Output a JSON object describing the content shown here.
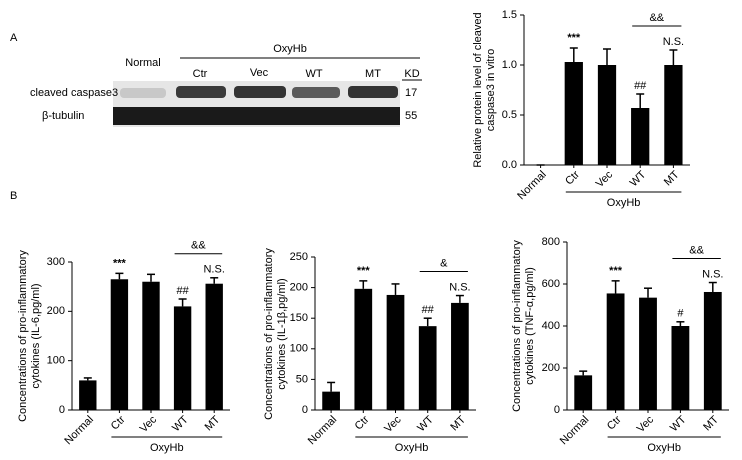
{
  "panel_labels": [
    "A",
    "B"
  ],
  "blot": {
    "group_label": "OxyHb",
    "lanes": [
      "Normal",
      "Ctr",
      "Vec",
      "WT",
      "MT"
    ],
    "kd_header": "KD",
    "rows": [
      {
        "label": "cleaved caspase3",
        "kd": "17"
      },
      {
        "label": "β-tubulin",
        "kd": "55"
      }
    ]
  },
  "chart_data": [
    {
      "type": "bar",
      "ylabel": "Relative protein level of cleaved caspase3 in vitro",
      "categories": [
        "Normal",
        "Ctr",
        "Vec",
        "WT",
        "MT"
      ],
      "values": [
        0,
        1.03,
        1.0,
        0.57,
        1.0
      ],
      "errors": [
        0,
        0.14,
        0.16,
        0.14,
        0.15
      ],
      "color": "#000000",
      "ylim": [
        0,
        1.5
      ],
      "yticks": [
        {
          "value": 0,
          "label": "0.0"
        },
        0.5,
        {
          "value": 1,
          "label": "1.0"
        },
        1.5
      ],
      "annotations": [
        {
          "text": "***",
          "category": "Ctr"
        },
        {
          "text": "##",
          "category": "WT"
        },
        {
          "text": "N.S.",
          "category": "MT"
        }
      ],
      "brackets": [
        {
          "text": "&&",
          "from": "WT",
          "to": "MT"
        }
      ],
      "group": {
        "label": "OxyHb",
        "from": "Ctr",
        "to": "MT"
      }
    },
    {
      "type": "bar",
      "ylabel": "Concentrations of pro-inflammatory cytokines (IL-6,pg/ml)",
      "categories": [
        "Normal",
        "Ctr",
        "Vec",
        "WT",
        "MT"
      ],
      "values": [
        60,
        265,
        260,
        210,
        256
      ],
      "errors": [
        5,
        12,
        15,
        15,
        12
      ],
      "color": "#000000",
      "ylim": [
        0,
        300
      ],
      "yticks": [
        0,
        100,
        200,
        300
      ],
      "annotations": [
        {
          "text": "***",
          "category": "Ctr"
        },
        {
          "text": "##",
          "category": "WT"
        },
        {
          "text": "N.S.",
          "category": "MT"
        }
      ],
      "brackets": [
        {
          "text": "&&",
          "from": "WT",
          "to": "MT"
        }
      ],
      "group": {
        "label": "OxyHb",
        "from": "Ctr",
        "to": "MT"
      }
    },
    {
      "type": "bar",
      "ylabel": "Concentrations of pro-inflammatory cytokines (IL-1β,pg/ml)",
      "categories": [
        "Normal",
        "Ctr",
        "Vec",
        "WT",
        "MT"
      ],
      "values": [
        30,
        198,
        188,
        137,
        175
      ],
      "errors": [
        15,
        13,
        18,
        13,
        12
      ],
      "color": "#000000",
      "ylim": [
        0,
        250
      ],
      "yticks": [
        0,
        50,
        100,
        150,
        200,
        250
      ],
      "annotations": [
        {
          "text": "***",
          "category": "Ctr"
        },
        {
          "text": "##",
          "category": "WT"
        },
        {
          "text": "N.S.",
          "category": "MT"
        }
      ],
      "brackets": [
        {
          "text": "&",
          "from": "WT",
          "to": "MT"
        }
      ],
      "group": {
        "label": "OxyHb",
        "from": "Ctr",
        "to": "MT"
      }
    },
    {
      "type": "bar",
      "ylabel": "Concentrations of pro-inflammatory cytokines (TNF-α,pg/ml)",
      "categories": [
        "Normal",
        "Ctr",
        "Vec",
        "WT",
        "MT"
      ],
      "values": [
        165,
        555,
        535,
        400,
        562
      ],
      "errors": [
        20,
        60,
        45,
        20,
        45
      ],
      "color": "#000000",
      "ylim": [
        0,
        800
      ],
      "yticks": [
        0,
        200,
        400,
        600,
        800
      ],
      "annotations": [
        {
          "text": "***",
          "category": "Ctr"
        },
        {
          "text": "#",
          "category": "WT"
        },
        {
          "text": "N.S.",
          "category": "MT"
        }
      ],
      "brackets": [
        {
          "text": "&&",
          "from": "WT",
          "to": "MT"
        }
      ],
      "group": {
        "label": "OxyHb",
        "from": "Ctr",
        "to": "MT"
      }
    }
  ]
}
